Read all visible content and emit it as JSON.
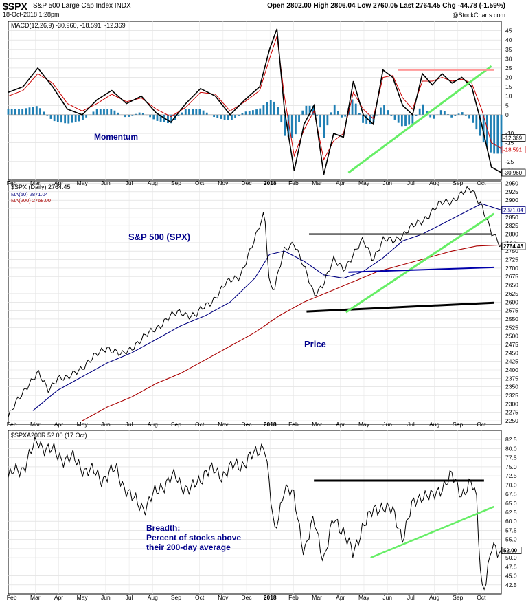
{
  "header": {
    "symbol": "$SPX",
    "name": "S&P 500 Large Cap Index INDX",
    "date": "18-Oct-2018 1:28pm",
    "open_label": "Open",
    "open": "2802.00",
    "high_label": "High",
    "high": "2806.04",
    "low_label": "Low",
    "low": "2760.05",
    "last_label": "Last",
    "last": "2764.45",
    "chg_label": "Chg",
    "chg": "-44.78 (-1.59%)",
    "brand": "@StockCharts.com"
  },
  "chart_data": [
    {
      "type": "line",
      "legend": "MACD(12,26,9) -30.960, -18.591, -12.369",
      "annotation": "Momentum",
      "ylim": [
        -35,
        50
      ],
      "y_ticks": [
        "45",
        "40",
        "35",
        "30",
        "25",
        "20",
        "15",
        "10",
        "5",
        "0",
        "-10",
        "-15",
        "-25",
        "-30"
      ],
      "value_badges": [
        "-12.369",
        "-18.591",
        "-30.960"
      ],
      "series": [
        {
          "name": "MACD",
          "color": "#000000",
          "x": [
            0,
            0.03,
            0.06,
            0.09,
            0.12,
            0.15,
            0.18,
            0.21,
            0.24,
            0.27,
            0.3,
            0.33,
            0.36,
            0.39,
            0.42,
            0.45,
            0.48,
            0.51,
            0.53,
            0.545,
            0.56,
            0.58,
            0.6,
            0.62,
            0.64,
            0.66,
            0.68,
            0.7,
            0.72,
            0.74,
            0.76,
            0.78,
            0.8,
            0.82,
            0.84,
            0.86,
            0.88,
            0.9,
            0.92,
            0.94,
            0.96,
            0.98,
            1.0
          ],
          "values": [
            12,
            15,
            25,
            15,
            3,
            0,
            8,
            13,
            6,
            10,
            1,
            -4,
            6,
            14,
            10,
            0,
            8,
            15,
            35,
            46,
            3,
            -30,
            -5,
            5,
            -32,
            -10,
            -12,
            18,
            0,
            -5,
            24,
            20,
            5,
            0,
            22,
            16,
            22,
            17,
            20,
            15,
            -5,
            -28,
            -31
          ]
        },
        {
          "name": "Signal",
          "color": "#cc0000",
          "x": [
            0,
            0.03,
            0.06,
            0.09,
            0.12,
            0.15,
            0.18,
            0.21,
            0.24,
            0.27,
            0.3,
            0.33,
            0.36,
            0.39,
            0.42,
            0.45,
            0.48,
            0.51,
            0.53,
            0.545,
            0.56,
            0.58,
            0.6,
            0.62,
            0.64,
            0.66,
            0.68,
            0.7,
            0.72,
            0.74,
            0.76,
            0.78,
            0.8,
            0.82,
            0.84,
            0.86,
            0.88,
            0.9,
            0.92,
            0.94,
            0.96,
            0.98,
            1.0
          ],
          "values": [
            10,
            13,
            22,
            17,
            6,
            2,
            6,
            11,
            7,
            9,
            3,
            -1,
            4,
            12,
            11,
            2,
            7,
            13,
            30,
            42,
            10,
            -22,
            -8,
            2,
            -24,
            -14,
            -10,
            12,
            3,
            -2,
            20,
            21,
            9,
            3,
            18,
            18,
            20,
            18,
            19,
            17,
            3,
            -15,
            -18
          ]
        }
      ]
    },
    {
      "type": "line",
      "legend_title": "$SPX (Daily) 2764.45",
      "legend_ma50": "MA(50) 2871.04",
      "legend_ma200": "MA(200) 2768.00",
      "annotation_title": "S&P 500 (SPX)",
      "annotation_price": "Price",
      "ylim": [
        2240,
        2955
      ],
      "y_ticks": [
        "2950",
        "2925",
        "2900",
        "2875",
        "2850",
        "2825",
        "2800",
        "2775",
        "2750",
        "2725",
        "2700",
        "2675",
        "2650",
        "2625",
        "2600",
        "2575",
        "2550",
        "2525",
        "2500",
        "2475",
        "2450",
        "2425",
        "2400",
        "2375",
        "2350",
        "2325",
        "2300",
        "2275",
        "2250"
      ],
      "value_badges": [
        "2871.04",
        "2764.45"
      ],
      "series": [
        {
          "name": "Price",
          "color": "#000000",
          "x": [
            0,
            0.02,
            0.04,
            0.06,
            0.08,
            0.1,
            0.12,
            0.14,
            0.17,
            0.2,
            0.23,
            0.26,
            0.29,
            0.32,
            0.35,
            0.38,
            0.41,
            0.44,
            0.47,
            0.5,
            0.52,
            0.53,
            0.54,
            0.56,
            0.58,
            0.6,
            0.62,
            0.64,
            0.66,
            0.68,
            0.7,
            0.72,
            0.74,
            0.76,
            0.78,
            0.8,
            0.82,
            0.84,
            0.86,
            0.88,
            0.9,
            0.92,
            0.94,
            0.96,
            0.98,
            1.0
          ],
          "values": [
            2260,
            2310,
            2360,
            2390,
            2340,
            2380,
            2370,
            2400,
            2430,
            2470,
            2440,
            2480,
            2510,
            2550,
            2570,
            2560,
            2600,
            2650,
            2680,
            2780,
            2870,
            2650,
            2640,
            2750,
            2780,
            2700,
            2620,
            2660,
            2720,
            2700,
            2740,
            2780,
            2730,
            2780,
            2780,
            2800,
            2820,
            2840,
            2870,
            2890,
            2900,
            2920,
            2930,
            2890,
            2800,
            2764
          ]
        },
        {
          "name": "MA(50)",
          "color": "#000080",
          "x": [
            0.05,
            0.1,
            0.15,
            0.2,
            0.25,
            0.3,
            0.35,
            0.4,
            0.45,
            0.5,
            0.53,
            0.56,
            0.6,
            0.64,
            0.68,
            0.72,
            0.76,
            0.8,
            0.84,
            0.88,
            0.92,
            0.96,
            1.0
          ],
          "values": [
            2280,
            2340,
            2380,
            2420,
            2450,
            2490,
            2530,
            2560,
            2600,
            2670,
            2740,
            2750,
            2720,
            2680,
            2670,
            2690,
            2730,
            2780,
            2800,
            2830,
            2860,
            2890,
            2871
          ]
        },
        {
          "name": "MA(200)",
          "color": "#aa0000",
          "x": [
            0.15,
            0.2,
            0.25,
            0.3,
            0.35,
            0.4,
            0.45,
            0.5,
            0.55,
            0.6,
            0.65,
            0.7,
            0.75,
            0.8,
            0.85,
            0.9,
            0.95,
            1.0
          ],
          "values": [
            2250,
            2290,
            2320,
            2360,
            2390,
            2430,
            2470,
            2510,
            2560,
            2600,
            2630,
            2660,
            2690,
            2710,
            2730,
            2750,
            2765,
            2768
          ]
        }
      ]
    },
    {
      "type": "line",
      "legend": "$SPXA200R 52.00 (17 Oct)",
      "annotation_lines": [
        "Breadth:",
        "Percent of stocks above",
        "their 200-day average"
      ],
      "ylim": [
        40,
        85
      ],
      "y_ticks": [
        "82.5",
        "80.0",
        "77.5",
        "75.0",
        "72.5",
        "70.0",
        "67.5",
        "65.0",
        "62.5",
        "60.0",
        "57.5",
        "55.0",
        "52.5",
        "50.0",
        "47.5",
        "45.0",
        "42.5"
      ],
      "value_badges": [
        "52.00"
      ],
      "series": [
        {
          "name": "$SPXA200R",
          "color": "#000000",
          "x": [
            0,
            0.03,
            0.06,
            0.08,
            0.1,
            0.13,
            0.16,
            0.19,
            0.22,
            0.25,
            0.28,
            0.31,
            0.34,
            0.37,
            0.4,
            0.43,
            0.46,
            0.5,
            0.52,
            0.54,
            0.56,
            0.58,
            0.6,
            0.62,
            0.64,
            0.66,
            0.68,
            0.7,
            0.72,
            0.74,
            0.76,
            0.78,
            0.8,
            0.82,
            0.84,
            0.86,
            0.88,
            0.9,
            0.92,
            0.94,
            0.95,
            0.96,
            0.97,
            0.98,
            1.0
          ],
          "values": [
            72,
            75,
            82,
            80,
            78,
            77,
            74,
            72,
            74,
            66,
            64,
            70,
            72,
            68,
            74,
            73,
            75,
            78,
            82,
            56,
            70,
            66,
            52,
            60,
            50,
            60,
            58,
            50,
            60,
            62,
            65,
            62,
            56,
            64,
            68,
            66,
            70,
            72,
            68,
            70,
            66,
            42,
            44,
            52,
            52
          ]
        }
      ]
    }
  ],
  "x_axis_labels": [
    "Feb",
    "Mar",
    "Apr",
    "May",
    "Jun",
    "Jul",
    "Aug",
    "Sep",
    "Oct",
    "Nov",
    "Dec",
    "2018",
    "Feb",
    "Mar",
    "Apr",
    "May",
    "Jun",
    "Jul",
    "Aug",
    "Sep",
    "Oct"
  ],
  "colors": {
    "macd_hist": "#1f7fb4",
    "trend_green": "#66ee66",
    "resistance_pink": "#ff9999",
    "support_blue": "#0000aa",
    "annotation_text": "#00008b"
  }
}
